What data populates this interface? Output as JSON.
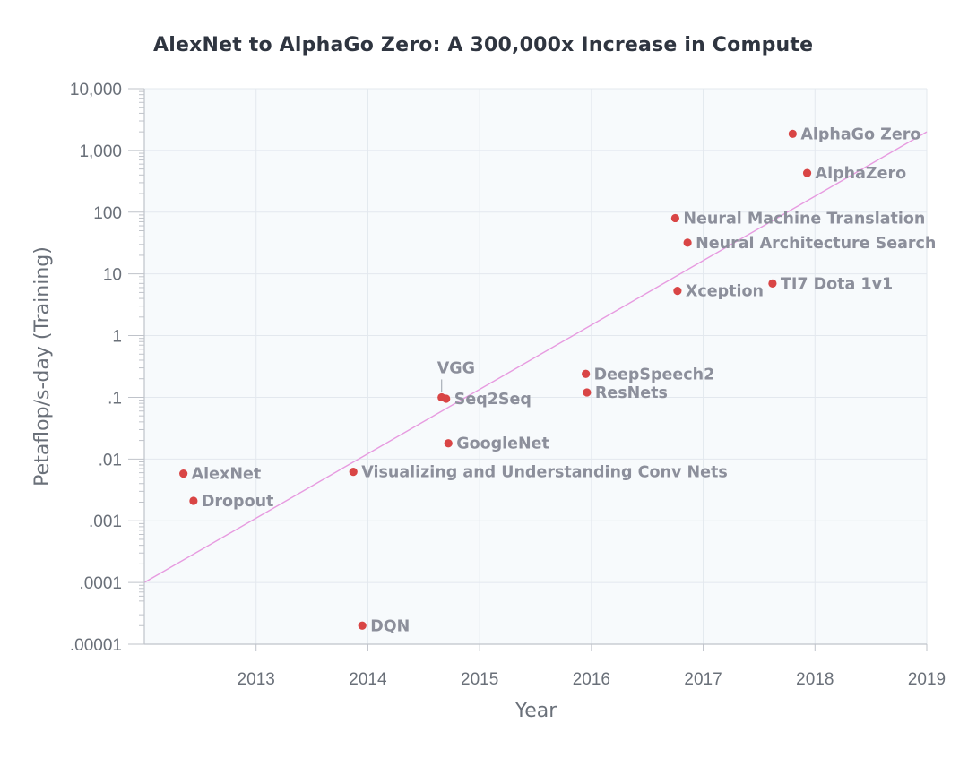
{
  "chart_data": {
    "type": "scatter",
    "title": "AlexNet to AlphaGo Zero: A 300,000x Increase in Compute",
    "xlabel": "Year",
    "ylabel": "Petaflop/s-day (Training)",
    "xlim": [
      2012.0,
      2019.0
    ],
    "ylim": [
      1e-05,
      10000
    ],
    "yscale": "log",
    "grid": true,
    "x_ticks": [
      {
        "value": 2013,
        "label": "2013"
      },
      {
        "value": 2014,
        "label": "2014"
      },
      {
        "value": 2015,
        "label": "2015"
      },
      {
        "value": 2016,
        "label": "2016"
      },
      {
        "value": 2017,
        "label": "2017"
      },
      {
        "value": 2018,
        "label": "2018"
      },
      {
        "value": 2019,
        "label": "2019"
      }
    ],
    "y_ticks": [
      {
        "value": 1e-05,
        "label": ".00001"
      },
      {
        "value": 0.0001,
        "label": ".0001"
      },
      {
        "value": 0.001,
        "label": ".001"
      },
      {
        "value": 0.01,
        "label": ".01"
      },
      {
        "value": 0.1,
        "label": ".1"
      },
      {
        "value": 1,
        "label": "1"
      },
      {
        "value": 10,
        "label": "10"
      },
      {
        "value": 100,
        "label": "100"
      },
      {
        "value": 1000,
        "label": "1,000"
      },
      {
        "value": 10000,
        "label": "10,000"
      }
    ],
    "trend_line": {
      "x": [
        2012.0,
        2019.0
      ],
      "y": [
        0.0001,
        2000
      ]
    },
    "points": [
      {
        "name": "AlexNet",
        "x": 2012.35,
        "y": 0.0058,
        "label_side": "right"
      },
      {
        "name": "Dropout",
        "x": 2012.44,
        "y": 0.0021,
        "label_side": "right"
      },
      {
        "name": "DQN",
        "x": 2013.95,
        "y": 2e-05,
        "label_side": "right"
      },
      {
        "name": "Visualizing and Understanding Conv Nets",
        "x": 2013.87,
        "y": 0.0062,
        "label_side": "right"
      },
      {
        "name": "GoogleNet",
        "x": 2014.72,
        "y": 0.018,
        "label_side": "right"
      },
      {
        "name": "VGG",
        "x": 2014.66,
        "y": 0.1,
        "label_side": "above"
      },
      {
        "name": "Seq2Seq",
        "x": 2014.7,
        "y": 0.095,
        "label_side": "right"
      },
      {
        "name": "DeepSpeech2",
        "x": 2015.95,
        "y": 0.24,
        "label_side": "right"
      },
      {
        "name": "ResNets",
        "x": 2015.96,
        "y": 0.12,
        "label_side": "right"
      },
      {
        "name": "Neural Machine Translation",
        "x": 2016.75,
        "y": 80,
        "label_side": "right"
      },
      {
        "name": "Neural Architecture Search",
        "x": 2016.86,
        "y": 32,
        "label_side": "right"
      },
      {
        "name": "Xception",
        "x": 2016.77,
        "y": 5.3,
        "label_side": "right"
      },
      {
        "name": "TI7 Dota 1v1",
        "x": 2017.62,
        "y": 7,
        "label_side": "right"
      },
      {
        "name": "AlphaGo Zero",
        "x": 2017.8,
        "y": 1860,
        "label_side": "right"
      },
      {
        "name": "AlphaZero",
        "x": 2017.93,
        "y": 430,
        "label_side": "right"
      }
    ],
    "colors": {
      "point": "#d94545",
      "trend": "#e79be0",
      "plot_background": "#f7fafc",
      "grid": "#e3e8ee",
      "axis": "#bfc3ca",
      "tick_text": "#6a7079",
      "point_label": "#8c8f9b"
    }
  }
}
